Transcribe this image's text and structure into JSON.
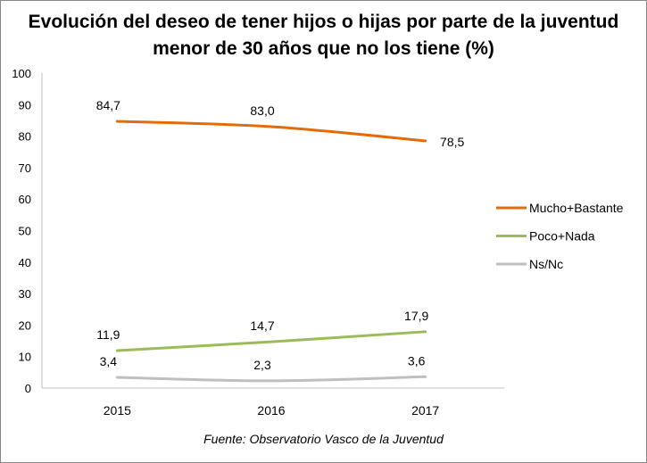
{
  "chart_data": {
    "type": "line",
    "title": "Evolución del deseo de tener hijos o hijas por parte de la juventud menor de 30 años que no los tiene (%)",
    "categories": [
      "2015",
      "2016",
      "2017"
    ],
    "series": [
      {
        "name": "Mucho+Bastante",
        "values": [
          84.7,
          83.0,
          78.5
        ],
        "labels": [
          "84,7",
          "83,0",
          "78,5"
        ],
        "color": "#E36C0A"
      },
      {
        "name": "Poco+Nada",
        "values": [
          11.9,
          14.7,
          17.9
        ],
        "labels": [
          "11,9",
          "14,7",
          "17,9"
        ],
        "color": "#9BBB59"
      },
      {
        "name": "Ns/Nc",
        "values": [
          3.4,
          2.3,
          3.6
        ],
        "labels": [
          "3,4",
          "2,3",
          "3,6"
        ],
        "color": "#BFBFBF"
      }
    ],
    "ylim": [
      0,
      100
    ],
    "yticks": [
      "0",
      "10",
      "20",
      "30",
      "40",
      "50",
      "60",
      "70",
      "80",
      "90",
      "100"
    ],
    "grid": false,
    "legend": "right",
    "xlabel": "",
    "ylabel": "",
    "source": "Fuente: Observatorio Vasco de la Juventud"
  }
}
